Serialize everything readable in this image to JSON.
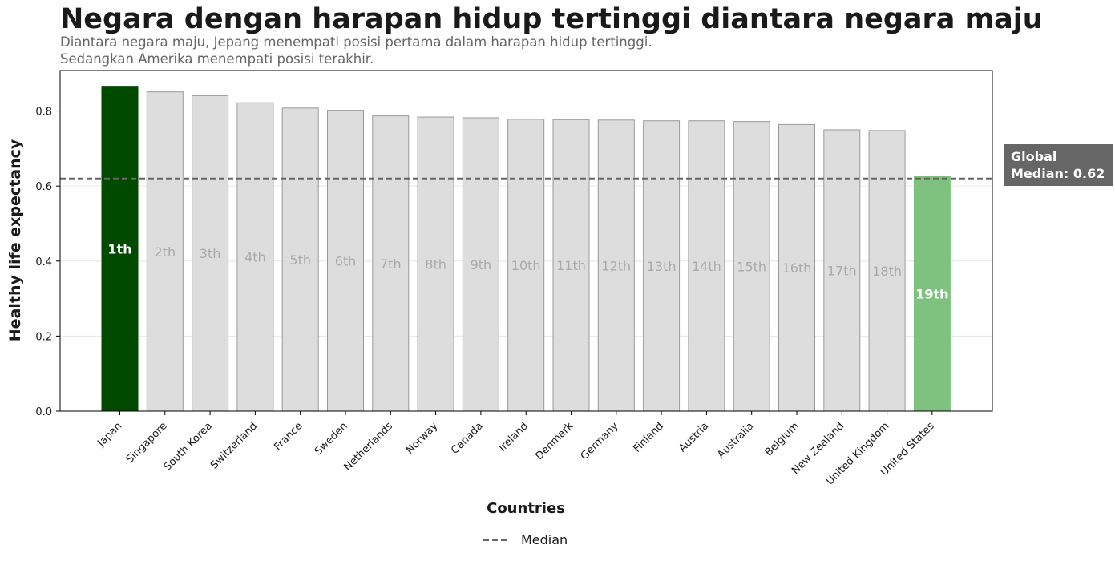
{
  "chart_data": {
    "type": "bar",
    "title": "Negara dengan harapan hidup tertinggi diantara negara maju",
    "subtitle": [
      "Diantara negara maju, Jepang menempati posisi pertama dalam harapan hidup tertinggi.",
      "Sedangkan Amerika menempati posisi terakhir."
    ],
    "xlabel": "Countries",
    "ylabel": "Healthy life expectancy",
    "ylim": [
      0,
      0.908
    ],
    "yticks": [
      0.0,
      0.2,
      0.4,
      0.6,
      0.8
    ],
    "ytick_labels": [
      "0.0",
      "0.2",
      "0.4",
      "0.6",
      "0.8"
    ],
    "grid": "horizontal",
    "categories": [
      "Japan",
      "Singapore",
      "South Korea",
      "Switzerland",
      "France",
      "Sweden",
      "Netherlands",
      "Norway",
      "Canada",
      "Ireland",
      "Denmark",
      "Germany",
      "Finland",
      "Austria",
      "Australia",
      "Belgium",
      "New Zealand",
      "United Kingdom",
      "United States"
    ],
    "values": [
      0.866,
      0.851,
      0.841,
      0.822,
      0.808,
      0.802,
      0.787,
      0.784,
      0.782,
      0.778,
      0.777,
      0.776,
      0.774,
      0.774,
      0.772,
      0.764,
      0.75,
      0.748,
      0.627
    ],
    "rank_labels": [
      "1th",
      "2th",
      "3th",
      "4th",
      "5th",
      "6th",
      "7th",
      "8th",
      "9th",
      "10th",
      "11th",
      "12th",
      "13th",
      "14th",
      "15th",
      "16th",
      "17th",
      "18th",
      "19th"
    ],
    "bar_colors": [
      "#004a00",
      "#dddddd",
      "#dddddd",
      "#dddddd",
      "#dddddd",
      "#dddddd",
      "#dddddd",
      "#dddddd",
      "#dddddd",
      "#dddddd",
      "#dddddd",
      "#dddddd",
      "#dddddd",
      "#dddddd",
      "#dddddd",
      "#dddddd",
      "#dddddd",
      "#dddddd",
      "#7fc17f"
    ],
    "bar_edge_colors": [
      "#004a00",
      "#999999",
      "#999999",
      "#999999",
      "#999999",
      "#999999",
      "#999999",
      "#999999",
      "#999999",
      "#999999",
      "#999999",
      "#999999",
      "#999999",
      "#999999",
      "#999999",
      "#999999",
      "#999999",
      "#999999",
      "#7fc17f"
    ],
    "rank_label_colors": [
      "#ffffff",
      "#aaaaaa",
      "#aaaaaa",
      "#aaaaaa",
      "#aaaaaa",
      "#aaaaaa",
      "#aaaaaa",
      "#aaaaaa",
      "#aaaaaa",
      "#aaaaaa",
      "#aaaaaa",
      "#aaaaaa",
      "#aaaaaa",
      "#aaaaaa",
      "#aaaaaa",
      "#aaaaaa",
      "#aaaaaa",
      "#aaaaaa",
      "#ffffff"
    ],
    "median": {
      "value": 0.62,
      "annotation": [
        "Global",
        "Median: 0.62"
      ],
      "color": "#666666"
    },
    "legend": {
      "label": "Median",
      "placement": "bottom-center"
    }
  }
}
